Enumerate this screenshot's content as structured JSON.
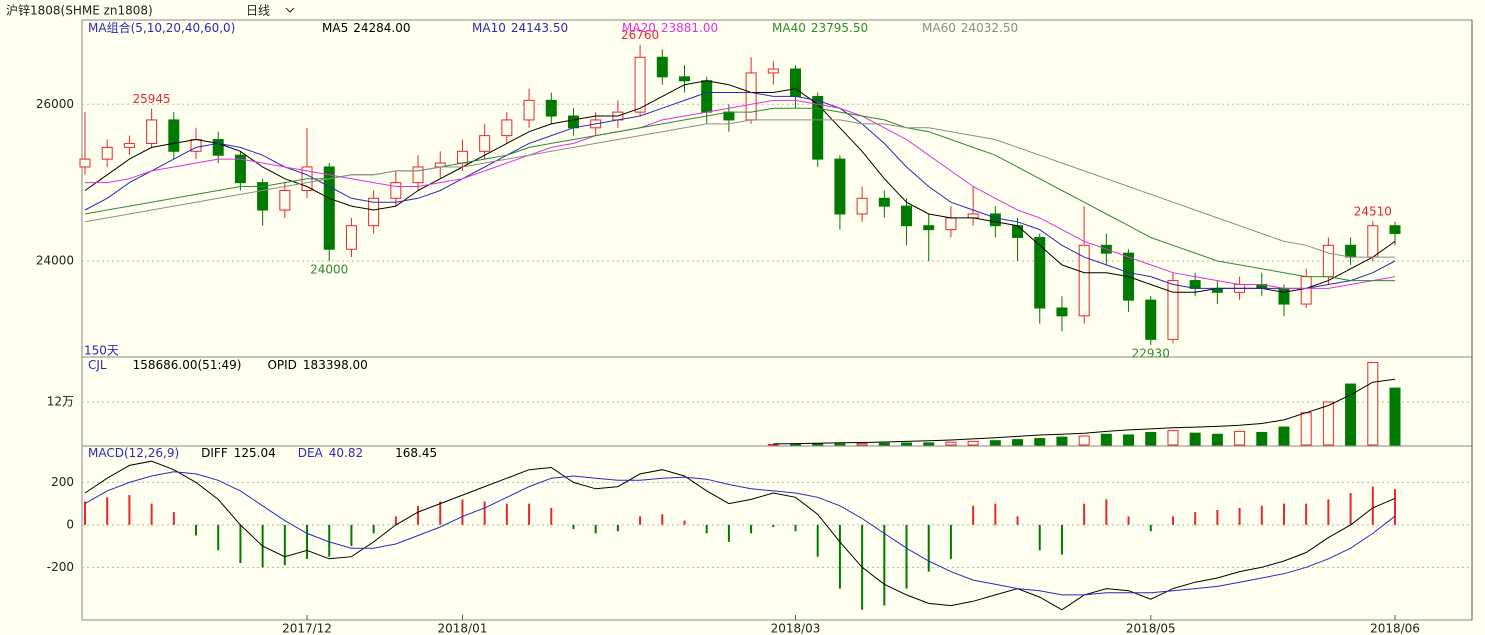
{
  "header": {
    "symbol": "沪锌1808(SHME zn1808)",
    "period": "日线"
  },
  "chart_data": {
    "type": "candlestick",
    "categories": [
      null,
      null,
      null,
      null,
      null,
      null,
      null,
      null,
      null,
      null,
      "2017/12",
      null,
      null,
      null,
      null,
      null,
      null,
      "2018/01",
      null,
      null,
      null,
      null,
      null,
      null,
      null,
      null,
      null,
      null,
      null,
      null,
      null,
      null,
      "2018/03",
      null,
      null,
      null,
      null,
      null,
      null,
      null,
      null,
      null,
      null,
      null,
      null,
      null,
      null,
      null,
      "2018/05",
      null,
      null,
      null,
      null,
      null,
      null,
      null,
      null,
      null,
      null,
      "2018/06"
    ],
    "open": [
      25200,
      25300,
      25450,
      25500,
      25800,
      25400,
      25550,
      25350,
      25000,
      24650,
      24900,
      25200,
      24150,
      24450,
      24800,
      25000,
      25200,
      25250,
      25400,
      25600,
      25800,
      26050,
      25850,
      25700,
      25800,
      25900,
      26600,
      26350,
      26300,
      25900,
      25800,
      26400,
      26450,
      26100,
      25300,
      24600,
      24800,
      24700,
      24450,
      24400,
      24550,
      24600,
      24450,
      24300,
      23400,
      23300,
      24200,
      24100,
      23500,
      23000,
      23750,
      23650,
      23600,
      23700,
      23650,
      23450,
      23800,
      24200,
      24050,
      24450
    ],
    "high": [
      25900,
      25550,
      25600,
      25945,
      25900,
      25700,
      25650,
      25400,
      25050,
      25000,
      25700,
      25250,
      24550,
      24900,
      25150,
      25350,
      25400,
      25550,
      25750,
      25900,
      26200,
      26150,
      25950,
      25900,
      26050,
      26760,
      26700,
      26500,
      26350,
      26000,
      26600,
      26550,
      26500,
      26150,
      25350,
      24950,
      24900,
      24800,
      24600,
      24700,
      24950,
      24700,
      24550,
      24350,
      23550,
      24700,
      24350,
      24150,
      23550,
      23850,
      23850,
      23750,
      23800,
      23850,
      23700,
      23900,
      24300,
      24300,
      24510,
      24500
    ],
    "low": [
      25100,
      25200,
      25350,
      25450,
      25300,
      25300,
      25250,
      24900,
      24450,
      24550,
      24800,
      24000,
      24050,
      24350,
      24700,
      24900,
      25050,
      25150,
      25300,
      25500,
      25700,
      25750,
      25600,
      25600,
      25700,
      25850,
      26250,
      26150,
      25750,
      25650,
      25750,
      26250,
      25950,
      25200,
      24400,
      24500,
      24550,
      24200,
      24000,
      24300,
      24450,
      24300,
      24000,
      23200,
      23100,
      23200,
      23950,
      23350,
      22930,
      22950,
      23550,
      23450,
      23500,
      23550,
      23300,
      23400,
      23700,
      23950,
      24000,
      24200
    ],
    "close": [
      25300,
      25450,
      25500,
      25800,
      25400,
      25550,
      25350,
      25000,
      24650,
      24900,
      25200,
      24150,
      24450,
      24800,
      25000,
      25200,
      25250,
      25400,
      25600,
      25800,
      26050,
      25850,
      25700,
      25800,
      25900,
      26600,
      26350,
      26300,
      25900,
      25800,
      26400,
      26450,
      26100,
      25300,
      24600,
      24800,
      24700,
      24450,
      24400,
      24550,
      24600,
      24450,
      24300,
      23400,
      23300,
      24200,
      24100,
      23500,
      23000,
      23750,
      23650,
      23600,
      23700,
      23650,
      23450,
      23800,
      24200,
      24050,
      24450,
      24350
    ],
    "up_color": "#e8262d",
    "down_color": "#007a00",
    "ylim": [
      22800,
      27050
    ],
    "yticks": [
      24000,
      26000
    ],
    "grid": true,
    "indicator": "MA组合(5,10,20,40,60,0)",
    "days_label": "150天",
    "series": [
      {
        "name": "MA5",
        "color": "#000000",
        "current": 24284,
        "current_label": "24284.00",
        "values": [
          24900,
          25100,
          25300,
          25450,
          25500,
          25550,
          25500,
          25400,
          25200,
          25050,
          24950,
          24800,
          24700,
          24650,
          24700,
          24900,
          25050,
          25200,
          25350,
          25500,
          25650,
          25750,
          25800,
          25850,
          25850,
          25950,
          26100,
          26250,
          26300,
          26250,
          26150,
          26150,
          26200,
          26000,
          25700,
          25400,
          25050,
          24750,
          24600,
          24550,
          24550,
          24500,
          24450,
          24200,
          23950,
          23850,
          23850,
          23800,
          23700,
          23600,
          23600,
          23650,
          23650,
          23650,
          23600,
          23650,
          23750,
          23900,
          24050,
          24250
        ]
      },
      {
        "name": "MA10",
        "color": "#2a2ab8",
        "current": 24143.5,
        "current_label": "24143.50",
        "values": [
          24650,
          24800,
          25000,
          25150,
          25300,
          25450,
          25500,
          25450,
          25350,
          25200,
          25100,
          24950,
          24800,
          24750,
          24750,
          24800,
          24900,
          25050,
          25200,
          25350,
          25500,
          25600,
          25700,
          25750,
          25800,
          25850,
          25950,
          26050,
          26150,
          26150,
          26150,
          26100,
          26100,
          26050,
          25950,
          25750,
          25500,
          25200,
          24950,
          24750,
          24650,
          24550,
          24500,
          24400,
          24200,
          24050,
          23950,
          23850,
          23800,
          23700,
          23650,
          23650,
          23650,
          23650,
          23650,
          23650,
          23700,
          23750,
          23850,
          24000
        ]
      },
      {
        "name": "MA20",
        "color": "#e030e0",
        "current": 23881,
        "current_label": "23881.00",
        "values": [
          25000,
          25000,
          25050,
          25150,
          25200,
          25250,
          25300,
          25300,
          25250,
          25200,
          25150,
          25100,
          25050,
          25000,
          24950,
          24950,
          25000,
          25050,
          25150,
          25250,
          25350,
          25450,
          25500,
          25600,
          25650,
          25700,
          25800,
          25850,
          25900,
          25950,
          26000,
          26050,
          26050,
          26000,
          25950,
          25850,
          25700,
          25550,
          25350,
          25150,
          24950,
          24800,
          24650,
          24550,
          24400,
          24250,
          24150,
          24050,
          23950,
          23850,
          23800,
          23750,
          23700,
          23700,
          23650,
          23650,
          23650,
          23700,
          23750,
          23800
        ]
      },
      {
        "name": "MA40",
        "color": "#2e8b2e",
        "current": 23795.5,
        "current_label": "23795.50",
        "values": [
          24600,
          24650,
          24700,
          24750,
          24800,
          24850,
          24900,
          24950,
          24950,
          25000,
          25050,
          25050,
          25100,
          25100,
          25150,
          25150,
          25200,
          25250,
          25300,
          25350,
          25450,
          25500,
          25550,
          25600,
          25650,
          25700,
          25750,
          25800,
          25850,
          25900,
          25900,
          25950,
          25950,
          25950,
          25900,
          25850,
          25800,
          25700,
          25650,
          25550,
          25450,
          25350,
          25200,
          25050,
          24900,
          24750,
          24600,
          24450,
          24300,
          24200,
          24100,
          24000,
          23950,
          23900,
          23850,
          23800,
          23800,
          23750,
          23750,
          23750
        ]
      },
      {
        "name": "MA60",
        "color": "#8c8c8c",
        "current": 24032.5,
        "current_label": "24032.50",
        "values": [
          24500,
          24550,
          24600,
          24650,
          24700,
          24750,
          24800,
          24850,
          24900,
          24950,
          25000,
          25050,
          25100,
          25100,
          25150,
          25150,
          25200,
          25200,
          25250,
          25300,
          25350,
          25400,
          25450,
          25500,
          25550,
          25600,
          25650,
          25700,
          25750,
          25750,
          25800,
          25800,
          25800,
          25800,
          25800,
          25750,
          25750,
          25700,
          25700,
          25650,
          25600,
          25550,
          25450,
          25350,
          25250,
          25150,
          25050,
          24950,
          24850,
          24750,
          24650,
          24550,
          24450,
          24350,
          24250,
          24200,
          24100,
          24050,
          24050,
          24050
        ]
      }
    ],
    "volume": {
      "name": "CJL",
      "summary": "158686.00(51:49)",
      "ylim": [
        0,
        237000
      ],
      "yticks": [
        {
          "value": 120000,
          "label": "12万"
        }
      ],
      "values": [
        0,
        0,
        0,
        0,
        0,
        0,
        0,
        0,
        0,
        0,
        0,
        0,
        0,
        0,
        0,
        0,
        0,
        0,
        0,
        0,
        0,
        0,
        0,
        0,
        0,
        0,
        0,
        0,
        0,
        0,
        0,
        1500,
        2000,
        3000,
        3500,
        4000,
        5000,
        5500,
        6000,
        8000,
        10000,
        12000,
        15000,
        18000,
        22000,
        25000,
        30000,
        28000,
        35000,
        40000,
        33000,
        30000,
        38000,
        35000,
        50000,
        90000,
        120000,
        170000,
        230000,
        158686
      ],
      "series": [
        {
          "name": "OPID",
          "color": "#000000",
          "current": 183398,
          "current_label": "183398.00",
          "values": [
            null,
            null,
            null,
            null,
            null,
            null,
            null,
            null,
            null,
            null,
            null,
            null,
            null,
            null,
            null,
            null,
            null,
            null,
            null,
            null,
            null,
            null,
            null,
            null,
            null,
            null,
            null,
            null,
            null,
            null,
            null,
            3000,
            4000,
            5000,
            6000,
            7000,
            8500,
            10000,
            12000,
            14000,
            17000,
            20000,
            24000,
            28000,
            30000,
            33000,
            38000,
            42000,
            45000,
            48000,
            50000,
            52000,
            55000,
            60000,
            70000,
            90000,
            110000,
            140000,
            175000,
            183398
          ]
        }
      ]
    },
    "macd": {
      "name": "MACD(12,26,9)",
      "ylim": [
        -448,
        362
      ],
      "yticks": [
        -200,
        0,
        200
      ],
      "up_color": "#e8262d",
      "down_color": "#007a00",
      "values": [
        110,
        130,
        140,
        100,
        60,
        -50,
        -120,
        -180,
        -200,
        -190,
        -160,
        -150,
        -100,
        -40,
        40,
        90,
        110,
        120,
        110,
        100,
        100,
        80,
        -20,
        -40,
        -30,
        40,
        50,
        20,
        -40,
        -80,
        -40,
        -10,
        -30,
        -150,
        -300,
        -400,
        -380,
        -300,
        -220,
        -160,
        90,
        100,
        40,
        -120,
        -140,
        100,
        120,
        40,
        -30,
        40,
        60,
        70,
        80,
        90,
        100,
        100,
        120,
        150,
        180,
        168.45
      ],
      "series": [
        {
          "name": "DIFF",
          "color": "#000000",
          "values": [
            150,
            220,
            280,
            300,
            260,
            200,
            120,
            0,
            -100,
            -150,
            -120,
            -160,
            -150,
            -80,
            0,
            60,
            100,
            140,
            180,
            220,
            260,
            270,
            200,
            170,
            180,
            240,
            260,
            230,
            160,
            100,
            120,
            150,
            130,
            50,
            -80,
            -200,
            -280,
            -330,
            -370,
            -380,
            -360,
            -330,
            -300,
            -340,
            -400,
            -330,
            -300,
            -310,
            -350,
            -300,
            -270,
            -250,
            -220,
            -200,
            -170,
            -130,
            -60,
            0,
            80,
            125.04
          ]
        },
        {
          "name": "DEA",
          "color": "#2a2ab8",
          "values": [
            100,
            160,
            200,
            230,
            250,
            240,
            210,
            160,
            90,
            20,
            -40,
            -80,
            -110,
            -110,
            -90,
            -50,
            -10,
            40,
            80,
            130,
            180,
            220,
            230,
            220,
            210,
            210,
            220,
            225,
            215,
            190,
            170,
            160,
            150,
            130,
            90,
            30,
            -40,
            -110,
            -170,
            -220,
            -260,
            -280,
            -300,
            -310,
            -330,
            -330,
            -320,
            -320,
            -320,
            -310,
            -300,
            -290,
            -270,
            -250,
            -230,
            -200,
            -160,
            -110,
            -40,
            40.82
          ]
        }
      ]
    }
  }
}
